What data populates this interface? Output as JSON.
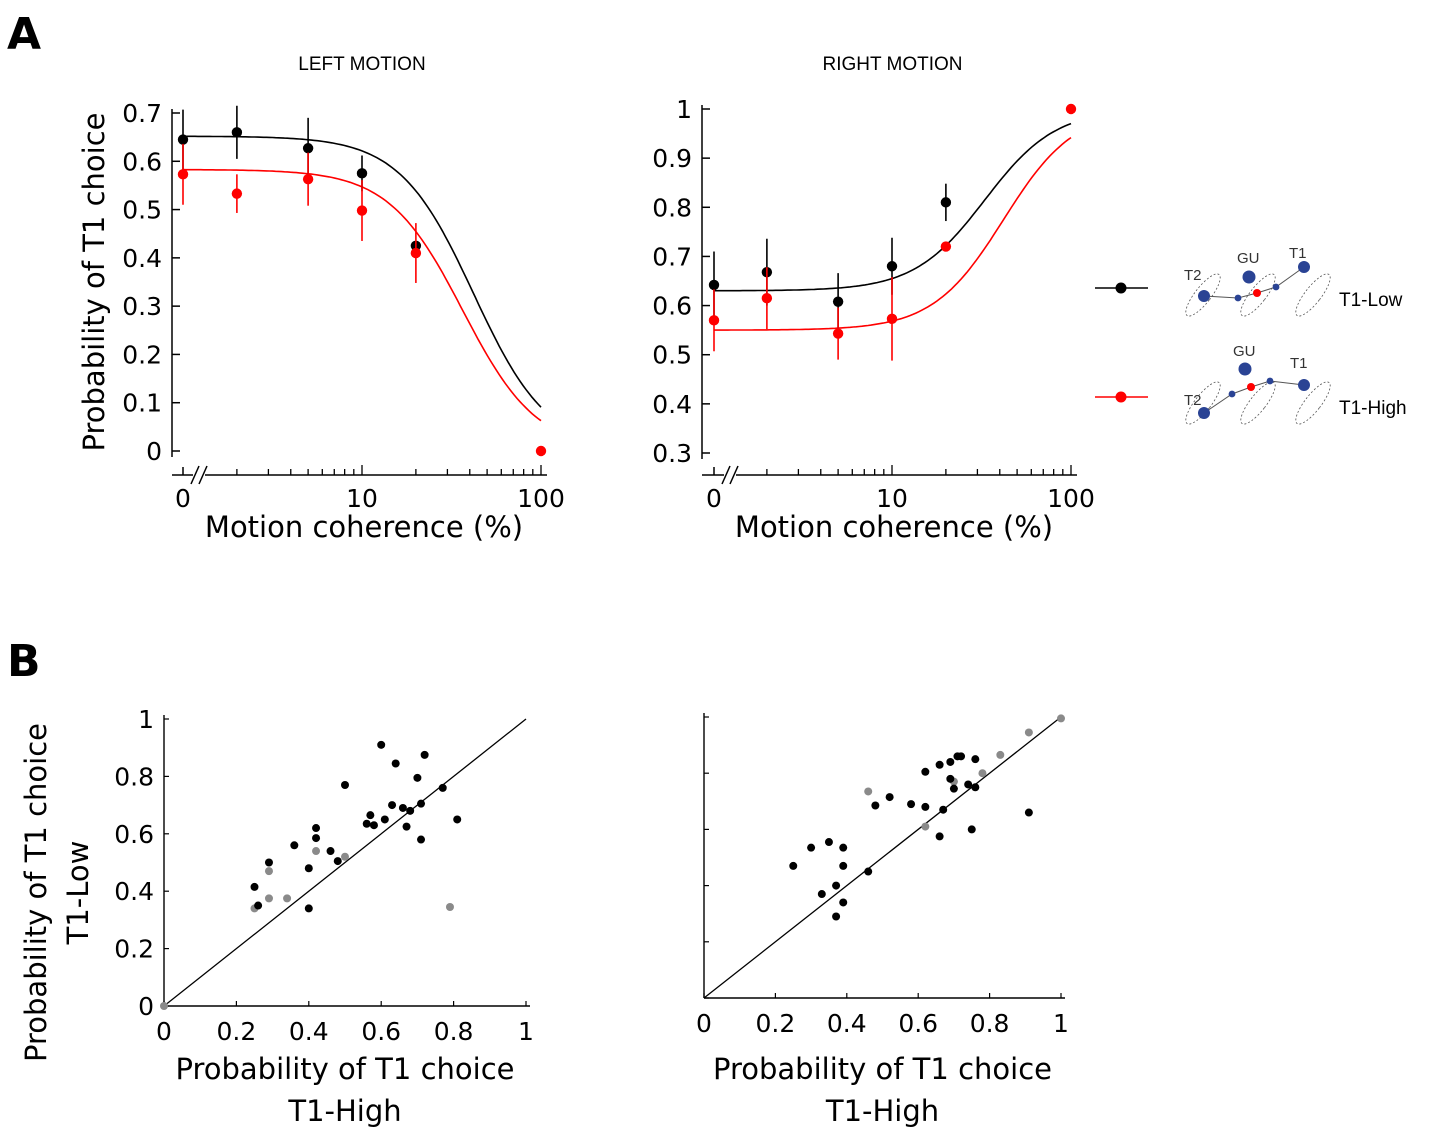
{
  "panels": {
    "a_letter": "A",
    "b_letter": "B"
  },
  "colors": {
    "low": "#000000",
    "high": "#ff0000",
    "gray": "#8a8a8a",
    "blue": "#2a4394"
  },
  "legend": {
    "icon_labels": {
      "t2": "T2",
      "gu": "GU",
      "t1": "T1"
    },
    "low_label": "T1-Low",
    "high_label": "T1-High"
  },
  "chart_data": [
    {
      "id": "left_motion",
      "type": "line",
      "title": "LEFT MOTION",
      "xlabel": "Motion coherence (%)",
      "ylabel": "Probability of T1 choice",
      "x_scale": "log (0 shown at axis break)",
      "xticks": [
        "0",
        "10",
        "100"
      ],
      "yticks": [
        "0",
        "0.1",
        "0.2",
        "0.3",
        "0.4",
        "0.5",
        "0.6",
        "0.7"
      ],
      "ylim": [
        0,
        0.7
      ],
      "x": [
        0,
        2,
        5,
        10,
        20,
        100
      ],
      "series": [
        {
          "name": "T1-Low",
          "values": [
            0.645,
            0.66,
            0.627,
            0.575,
            0.425,
            null
          ],
          "err": [
            0.062,
            0.055,
            0.063,
            0.037,
            0.0,
            null
          ],
          "fit": {
            "top": 0.652,
            "x50": 42.0,
            "slope": 2.1
          }
        },
        {
          "name": "T1-High",
          "values": [
            0.573,
            0.533,
            0.563,
            0.498,
            0.41,
            0.0
          ],
          "err": [
            0.063,
            0.04,
            0.055,
            0.063,
            0.062,
            0.0
          ],
          "fit": {
            "top": 0.583,
            "x50": 36.5,
            "slope": 2.1
          }
        }
      ]
    },
    {
      "id": "right_motion",
      "type": "line",
      "title": "RIGHT MOTION",
      "xlabel": "Motion coherence (%)",
      "ylabel": "",
      "x_scale": "log (0 shown at axis break)",
      "xticks": [
        "0",
        "10",
        "100"
      ],
      "yticks": [
        "0.3",
        "0.4",
        "0.5",
        "0.6",
        "0.7",
        "0.8",
        "0.9",
        "1"
      ],
      "ylim": [
        0.3,
        1.0
      ],
      "x": [
        0,
        2,
        5,
        10,
        20,
        100
      ],
      "series": [
        {
          "name": "T1-Low",
          "values": [
            0.642,
            0.668,
            0.608,
            0.68,
            0.81,
            null
          ],
          "err": [
            0.068,
            0.068,
            0.058,
            0.058,
            0.038,
            null
          ],
          "fit": {
            "base": 0.63,
            "x50": 33.0,
            "slope": 2.2
          }
        },
        {
          "name": "T1-High",
          "values": [
            0.57,
            0.615,
            0.543,
            0.573,
            0.72,
            1.0
          ],
          "err": [
            0.063,
            0.063,
            0.053,
            0.085,
            0.0,
            0.0
          ],
          "fit": {
            "base": 0.55,
            "x50": 42.0,
            "slope": 2.2
          }
        }
      ]
    },
    {
      "id": "scatter_left",
      "type": "scatter",
      "xlabel": [
        "Probability of T1 choice",
        "T1-High"
      ],
      "ylabel": [
        "Probability of T1 choice",
        "T1-Low"
      ],
      "xticks": [
        "0",
        "0.2",
        "0.4",
        "0.6",
        "0.8",
        "1"
      ],
      "yticks": [
        "0",
        "0.2",
        "0.4",
        "0.6",
        "0.8",
        "1"
      ],
      "xlim": [
        0,
        1
      ],
      "ylim": [
        0,
        1
      ],
      "unity_line": true,
      "points_black": [
        [
          0.25,
          0.415
        ],
        [
          0.26,
          0.35
        ],
        [
          0.29,
          0.5
        ],
        [
          0.36,
          0.56
        ],
        [
          0.4,
          0.34
        ],
        [
          0.4,
          0.48
        ],
        [
          0.42,
          0.62
        ],
        [
          0.42,
          0.585
        ],
        [
          0.46,
          0.54
        ],
        [
          0.48,
          0.505
        ],
        [
          0.5,
          0.77
        ],
        [
          0.56,
          0.635
        ],
        [
          0.57,
          0.665
        ],
        [
          0.58,
          0.63
        ],
        [
          0.6,
          0.91
        ],
        [
          0.61,
          0.65
        ],
        [
          0.63,
          0.7
        ],
        [
          0.64,
          0.845
        ],
        [
          0.66,
          0.69
        ],
        [
          0.67,
          0.625
        ],
        [
          0.68,
          0.68
        ],
        [
          0.7,
          0.795
        ],
        [
          0.71,
          0.705
        ],
        [
          0.71,
          0.58
        ],
        [
          0.72,
          0.875
        ],
        [
          0.77,
          0.76
        ],
        [
          0.81,
          0.65
        ]
      ],
      "points_gray": [
        [
          0.0,
          0.0
        ],
        [
          0.25,
          0.34
        ],
        [
          0.29,
          0.47
        ],
        [
          0.29,
          0.375
        ],
        [
          0.34,
          0.375
        ],
        [
          0.42,
          0.54
        ],
        [
          0.5,
          0.52
        ],
        [
          0.79,
          0.345
        ]
      ]
    },
    {
      "id": "scatter_right",
      "type": "scatter",
      "xlabel": [
        "Probability of T1 choice",
        "T1-High"
      ],
      "ylabel": "",
      "xticks": [
        "0",
        "0.2",
        "0.4",
        "0.6",
        "0.8",
        "1"
      ],
      "yticks": [],
      "xlim": [
        0,
        1
      ],
      "ylim": [
        0,
        1
      ],
      "unity_line": true,
      "points_black": [
        [
          0.25,
          0.47
        ],
        [
          0.3,
          0.535
        ],
        [
          0.33,
          0.37
        ],
        [
          0.35,
          0.555
        ],
        [
          0.37,
          0.29
        ],
        [
          0.37,
          0.4
        ],
        [
          0.39,
          0.34
        ],
        [
          0.39,
          0.47
        ],
        [
          0.39,
          0.535
        ],
        [
          0.46,
          0.45
        ],
        [
          0.48,
          0.685
        ],
        [
          0.52,
          0.715
        ],
        [
          0.58,
          0.69
        ],
        [
          0.62,
          0.805
        ],
        [
          0.62,
          0.68
        ],
        [
          0.66,
          0.83
        ],
        [
          0.66,
          0.575
        ],
        [
          0.67,
          0.67
        ],
        [
          0.69,
          0.78
        ],
        [
          0.69,
          0.84
        ],
        [
          0.7,
          0.745
        ],
        [
          0.71,
          0.86
        ],
        [
          0.72,
          0.86
        ],
        [
          0.74,
          0.76
        ],
        [
          0.75,
          0.6
        ],
        [
          0.76,
          0.85
        ],
        [
          0.76,
          0.75
        ],
        [
          0.91,
          0.66
        ]
      ],
      "points_gray": [
        [
          0.46,
          0.735
        ],
        [
          0.62,
          0.61
        ],
        [
          0.7,
          0.77
        ],
        [
          0.78,
          0.8
        ],
        [
          0.83,
          0.865
        ],
        [
          0.91,
          0.945
        ],
        [
          1.0,
          0.995
        ]
      ]
    }
  ]
}
